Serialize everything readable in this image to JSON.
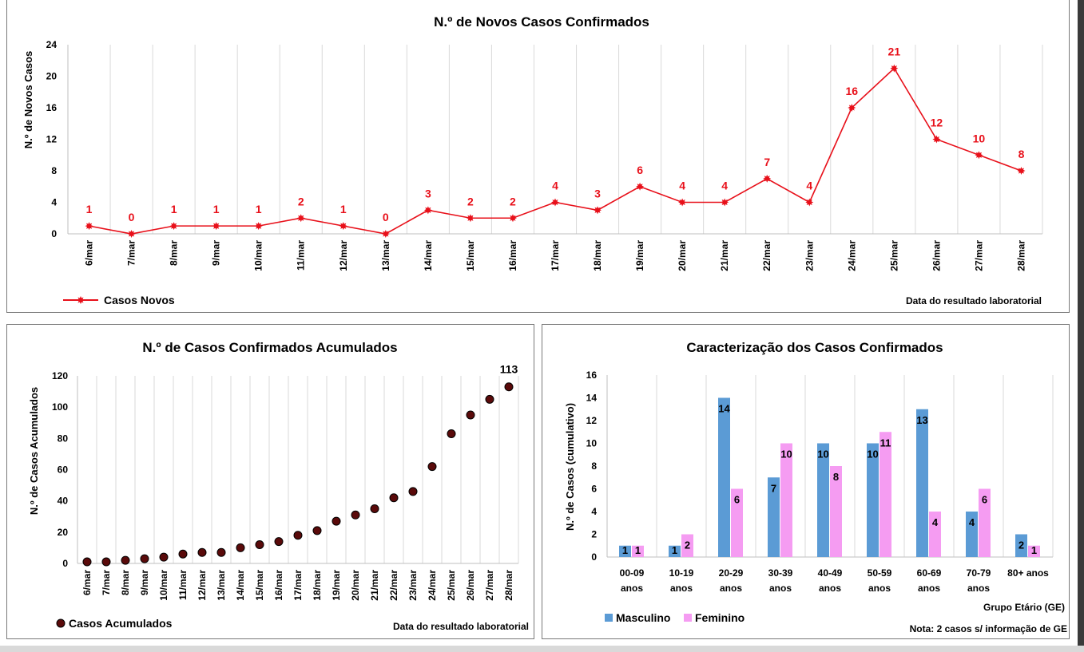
{
  "chart_data": [
    {
      "type": "line",
      "title": "N.º de Novos Casos Confirmados",
      "ylabel": "N.º de Novos Casos",
      "xlabel": "Data do resultado laboratorial",
      "ylim": [
        0,
        24
      ],
      "yticks": [
        0,
        4,
        8,
        12,
        16,
        20,
        24
      ],
      "categories": [
        "6/mar",
        "7/mar",
        "8/mar",
        "9/mar",
        "10/mar",
        "11/mar",
        "12/mar",
        "13/mar",
        "14/mar",
        "15/mar",
        "16/mar",
        "17/mar",
        "18/mar",
        "19/mar",
        "20/mar",
        "21/mar",
        "22/mar",
        "23/mar",
        "24/mar",
        "25/mar",
        "26/mar",
        "27/mar",
        "28/mar"
      ],
      "series": [
        {
          "name": "Casos Novos",
          "color": "#e8101a",
          "values": [
            1,
            0,
            1,
            1,
            1,
            2,
            1,
            0,
            3,
            2,
            2,
            4,
            3,
            6,
            4,
            4,
            7,
            4,
            16,
            21,
            12,
            10,
            8
          ]
        }
      ],
      "grid": "vertical",
      "legend": "bottom-left"
    },
    {
      "type": "scatter",
      "title": "N.º de Casos Confirmados Acumulados",
      "ylabel": "N.º de Casos Acumulados",
      "xlabel": "Data do resultado laboratorial",
      "ylim": [
        0,
        120
      ],
      "yticks": [
        0,
        20,
        40,
        60,
        80,
        100,
        120
      ],
      "categories": [
        "6/mar",
        "7/mar",
        "8/mar",
        "9/mar",
        "10/mar",
        "11/mar",
        "12/mar",
        "13/mar",
        "14/mar",
        "15/mar",
        "16/mar",
        "17/mar",
        "18/mar",
        "19/mar",
        "20/mar",
        "21/mar",
        "22/mar",
        "23/mar",
        "24/mar",
        "25/mar",
        "26/mar",
        "27/mar",
        "28/mar"
      ],
      "series": [
        {
          "name": "Casos Acumulados",
          "color": "#5a0a0a",
          "values": [
            1,
            1,
            2,
            3,
            4,
            6,
            7,
            7,
            10,
            12,
            14,
            18,
            21,
            27,
            31,
            35,
            42,
            46,
            62,
            83,
            95,
            105,
            113
          ]
        }
      ],
      "last_label": "113",
      "grid": "vertical",
      "legend": "bottom-left"
    },
    {
      "type": "bar",
      "title": "Caracterização dos Casos Confirmados",
      "ylabel": "N.º de Casos (cumulativo)",
      "xlabel": "Grupo Etário (GE)",
      "ylim": [
        0,
        16
      ],
      "yticks": [
        0,
        2,
        4,
        6,
        8,
        10,
        12,
        14,
        16
      ],
      "categories": [
        [
          "00-09",
          "anos"
        ],
        [
          "10-19",
          "anos"
        ],
        [
          "20-29",
          "anos"
        ],
        [
          "30-39",
          "anos"
        ],
        [
          "40-49",
          "anos"
        ],
        [
          "50-59",
          "anos"
        ],
        [
          "60-69",
          "anos"
        ],
        [
          "70-79",
          "anos"
        ],
        [
          "80+ anos",
          ""
        ]
      ],
      "series": [
        {
          "name": "Masculino",
          "color": "#5b9bd5",
          "values": [
            1,
            1,
            14,
            7,
            10,
            10,
            13,
            4,
            2
          ]
        },
        {
          "name": "Feminino",
          "color": "#f59cf2",
          "values": [
            1,
            2,
            6,
            10,
            8,
            11,
            4,
            6,
            1
          ]
        }
      ],
      "note": "Nota: 2 casos s/ informação de GE",
      "grid": "vertical",
      "legend": "bottom-left"
    }
  ]
}
